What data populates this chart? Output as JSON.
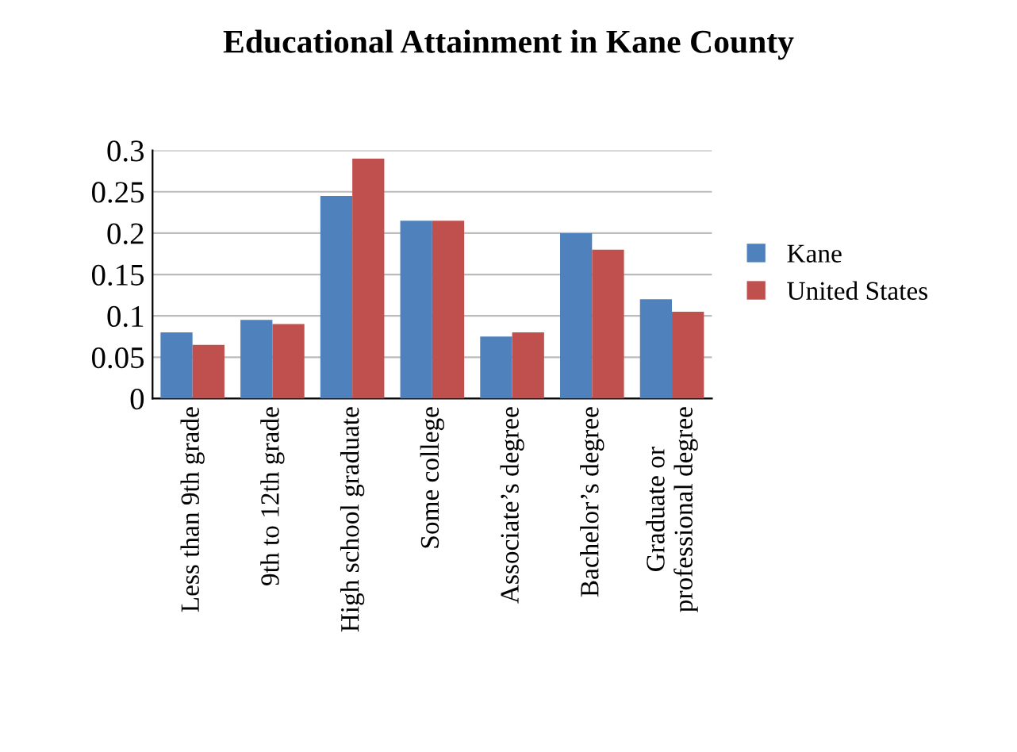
{
  "chart_data": {
    "type": "bar",
    "title": "Educational Attainment in Kane County",
    "categories": [
      "Less than 9th grade",
      "9th to 12th grade",
      "High school graduate",
      "Some college",
      "Associate’s degree",
      "Bachelor’s degree",
      "Graduate or\nprofessional degree"
    ],
    "series": [
      {
        "name": "Kane",
        "color": "#4f81bd",
        "values": [
          0.08,
          0.095,
          0.245,
          0.215,
          0.075,
          0.2,
          0.12
        ]
      },
      {
        "name": "United States",
        "color": "#c0504d",
        "values": [
          0.065,
          0.09,
          0.29,
          0.215,
          0.08,
          0.18,
          0.105
        ]
      }
    ],
    "ylim": [
      0,
      0.3
    ],
    "yticks": [
      0,
      0.05,
      0.1,
      0.15,
      0.2,
      0.25,
      0.3
    ],
    "grid": "y",
    "legend": "right"
  }
}
